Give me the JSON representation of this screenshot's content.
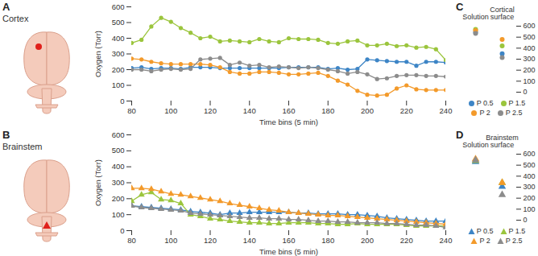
{
  "chart_data": [
    {
      "type": "line",
      "panel": "A",
      "title": "Cortex",
      "marker": "circle",
      "x_label": "Time bins (5 min)",
      "y_label": "Oxygen (Torr)",
      "x": [
        80,
        85,
        90,
        95,
        100,
        105,
        110,
        115,
        120,
        125,
        130,
        135,
        140,
        145,
        150,
        155,
        160,
        165,
        170,
        175,
        180,
        185,
        190,
        195,
        200,
        205,
        210,
        215,
        220,
        225,
        230,
        235,
        240
      ],
      "xlim": [
        80,
        240
      ],
      "xticks": [
        80,
        100,
        120,
        140,
        160,
        180,
        200,
        220,
        240
      ],
      "ylim": [
        0,
        600
      ],
      "yticks": [
        0,
        100,
        200,
        300,
        400,
        500,
        600
      ],
      "series": [
        {
          "name": "P 0.5",
          "color": "#3d85c6",
          "values": [
            210,
            215,
            205,
            210,
            210,
            205,
            215,
            215,
            215,
            210,
            210,
            210,
            210,
            210,
            210,
            210,
            215,
            215,
            215,
            215,
            205,
            210,
            200,
            205,
            265,
            260,
            255,
            250,
            250,
            225,
            250,
            250,
            245
          ]
        },
        {
          "name": "P 1.5",
          "color": "#9bc53d",
          "values": [
            370,
            390,
            475,
            530,
            505,
            465,
            435,
            400,
            410,
            380,
            385,
            380,
            375,
            395,
            380,
            375,
            400,
            395,
            395,
            390,
            370,
            365,
            380,
            385,
            355,
            355,
            365,
            350,
            355,
            340,
            345,
            330,
            260
          ]
        },
        {
          "name": "P 2",
          "color": "#f39a2b",
          "values": [
            270,
            265,
            250,
            240,
            235,
            235,
            235,
            235,
            230,
            215,
            185,
            175,
            175,
            185,
            185,
            180,
            170,
            170,
            175,
            180,
            160,
            130,
            105,
            65,
            40,
            35,
            40,
            80,
            100,
            75,
            70,
            70,
            70
          ]
        },
        {
          "name": "P 2.5",
          "color": "#8c8c8c",
          "values": [
            200,
            200,
            190,
            200,
            205,
            200,
            205,
            265,
            270,
            275,
            230,
            245,
            225,
            230,
            215,
            220,
            215,
            210,
            215,
            210,
            200,
            190,
            175,
            185,
            170,
            140,
            145,
            160,
            165,
            165,
            160,
            160,
            155
          ]
        }
      ]
    },
    {
      "type": "line",
      "panel": "B",
      "title": "Brainstem",
      "marker": "triangle",
      "x_label": "Time bins (5 min)",
      "y_label": "Oxygen (Torr)",
      "x": [
        80,
        85,
        90,
        95,
        100,
        105,
        110,
        115,
        120,
        125,
        130,
        135,
        140,
        145,
        150,
        155,
        160,
        165,
        170,
        175,
        180,
        185,
        190,
        195,
        200,
        205,
        210,
        215,
        220,
        225,
        230,
        235,
        240
      ],
      "xlim": [
        80,
        240
      ],
      "xticks": [
        80,
        100,
        120,
        140,
        160,
        180,
        200,
        220,
        240
      ],
      "ylim": [
        0,
        600
      ],
      "yticks": [
        0,
        100,
        200,
        300,
        400,
        500,
        600
      ],
      "series": [
        {
          "name": "P 0.5",
          "color": "#3d85c6",
          "values": [
            155,
            150,
            145,
            140,
            135,
            130,
            120,
            115,
            110,
            100,
            110,
            110,
            115,
            115,
            115,
            115,
            115,
            110,
            110,
            105,
            105,
            105,
            100,
            100,
            95,
            90,
            80,
            75,
            70,
            65,
            60,
            60,
            60
          ]
        },
        {
          "name": "P 1.5",
          "color": "#9bc53d",
          "values": [
            185,
            225,
            240,
            195,
            190,
            170,
            100,
            90,
            75,
            70,
            60,
            55,
            50,
            50,
            45,
            45,
            50,
            50,
            50,
            45,
            45,
            40,
            40,
            45,
            40,
            40,
            40,
            40,
            35,
            30,
            30,
            30,
            30
          ]
        },
        {
          "name": "P 2",
          "color": "#f39a2b",
          "values": [
            265,
            265,
            260,
            245,
            230,
            225,
            215,
            205,
            195,
            185,
            170,
            160,
            150,
            140,
            130,
            125,
            115,
            110,
            105,
            100,
            95,
            95,
            90,
            85,
            80,
            75,
            70,
            65,
            60,
            55,
            50,
            45,
            40
          ]
        },
        {
          "name": "P 2.5",
          "color": "#8c8c8c",
          "values": [
            155,
            145,
            140,
            135,
            130,
            125,
            110,
            105,
            100,
            95,
            90,
            85,
            80,
            80,
            75,
            75,
            70,
            70,
            65,
            60,
            60,
            55,
            55,
            50,
            50,
            50,
            45,
            45,
            40,
            35,
            35,
            30,
            20
          ]
        }
      ]
    },
    {
      "type": "scatter",
      "panel": "C",
      "marker": "circle",
      "legend": "bottom",
      "categories": [
        "Solution",
        "Cortical surface"
      ],
      "ylim": [
        0,
        600
      ],
      "yticks": [
        0,
        100,
        200,
        300,
        400,
        500,
        600
      ],
      "series": [
        {
          "name": "P 0.5",
          "color": "#3d85c6",
          "values": [
            545,
            350
          ]
        },
        {
          "name": "P 1.5",
          "color": "#9bc53d",
          "values": [
            570,
            420
          ]
        },
        {
          "name": "P 2",
          "color": "#f39a2b",
          "values": [
            560,
            480
          ]
        },
        {
          "name": "P 2.5",
          "color": "#8c8c8c",
          "values": [
            535,
            315
          ]
        }
      ]
    },
    {
      "type": "scatter",
      "panel": "D",
      "marker": "triangle",
      "legend": "bottom",
      "categories": [
        "Solution",
        "Brainstem surface"
      ],
      "ylim": [
        0,
        600
      ],
      "yticks": [
        0,
        100,
        200,
        300,
        400,
        500,
        600
      ],
      "series": [
        {
          "name": "P 0.5",
          "color": "#3d85c6",
          "values": [
            530,
            305
          ]
        },
        {
          "name": "P 1.5",
          "color": "#9bc53d",
          "values": [
            540,
            340
          ]
        },
        {
          "name": "P 2",
          "color": "#f39a2b",
          "values": [
            555,
            340
          ]
        },
        {
          "name": "P 2.5",
          "color": "#8c8c8c",
          "values": [
            545,
            230
          ]
        }
      ]
    }
  ]
}
